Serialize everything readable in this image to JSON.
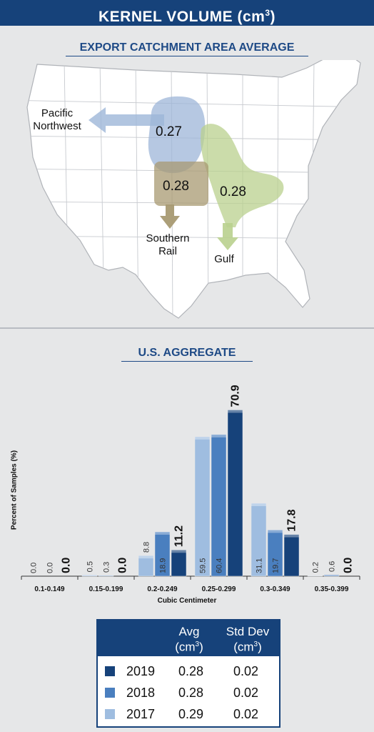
{
  "header": {
    "title": "KERNEL VOLUME (cm",
    "title_sup": "3",
    "title_end": ")"
  },
  "map": {
    "title": "EXPORT CATCHMENT AREA AVERAGE",
    "regions": [
      {
        "name": "Pacific Northwest",
        "line1": "Pacific",
        "line2": "Northwest",
        "value": "0.27",
        "color": "#9db6d8"
      },
      {
        "name": "Southern Rail",
        "line1": "Southern",
        "line2": "Rail",
        "value": "0.28",
        "color": "#a89a72"
      },
      {
        "name": "Gulf",
        "line1": "Gulf",
        "line2": "",
        "value": "0.28",
        "color": "#b9d08e"
      }
    ]
  },
  "chart_data": {
    "type": "bar",
    "title": "U.S. AGGREGATE",
    "xlabel": "Cubic Centimeter",
    "ylabel": "Percent of Samples (%)",
    "categories": [
      "0.1-0.149",
      "0.15-0.199",
      "0.2-0.249",
      "0.25-0.299",
      "0.3-0.349",
      "0.35-0.399"
    ],
    "series": [
      {
        "name": "2017",
        "values": [
          0.0,
          0.5,
          8.8,
          59.5,
          31.1,
          0.2
        ],
        "labels": [
          "0.0",
          "0.5",
          "8.8",
          "59.5",
          "31.1",
          "0.2"
        ],
        "color": "#9fbde0"
      },
      {
        "name": "2018",
        "values": [
          0.0,
          0.3,
          18.9,
          60.4,
          19.7,
          0.6
        ],
        "labels": [
          "0.0",
          "0.3",
          "18.9",
          "60.4",
          "19.7",
          "0.6"
        ],
        "color": "#4a7fbf"
      },
      {
        "name": "2019",
        "values": [
          0.0,
          0.0,
          11.2,
          70.9,
          17.8,
          0.0
        ],
        "labels": [
          "0.0",
          "0.0",
          "11.2",
          "70.9",
          "17.8",
          "0.0"
        ],
        "color": "#16427a"
      }
    ],
    "ylim": [
      0,
      75
    ],
    "grid": false
  },
  "stats_table": {
    "headers": {
      "avg_line1": "Avg",
      "avg_line2": "(cm",
      "sd_line1": "Std Dev",
      "sd_line2": "(cm",
      "sup": "3",
      "close": ")"
    },
    "rows": [
      {
        "year": "2019",
        "avg": "0.28",
        "std_dev": "0.02",
        "color": "#16427a"
      },
      {
        "year": "2018",
        "avg": "0.28",
        "std_dev": "0.02",
        "color": "#4a7fbf"
      },
      {
        "year": "2017",
        "avg": "0.29",
        "std_dev": "0.02",
        "color": "#9fbde0"
      }
    ]
  }
}
